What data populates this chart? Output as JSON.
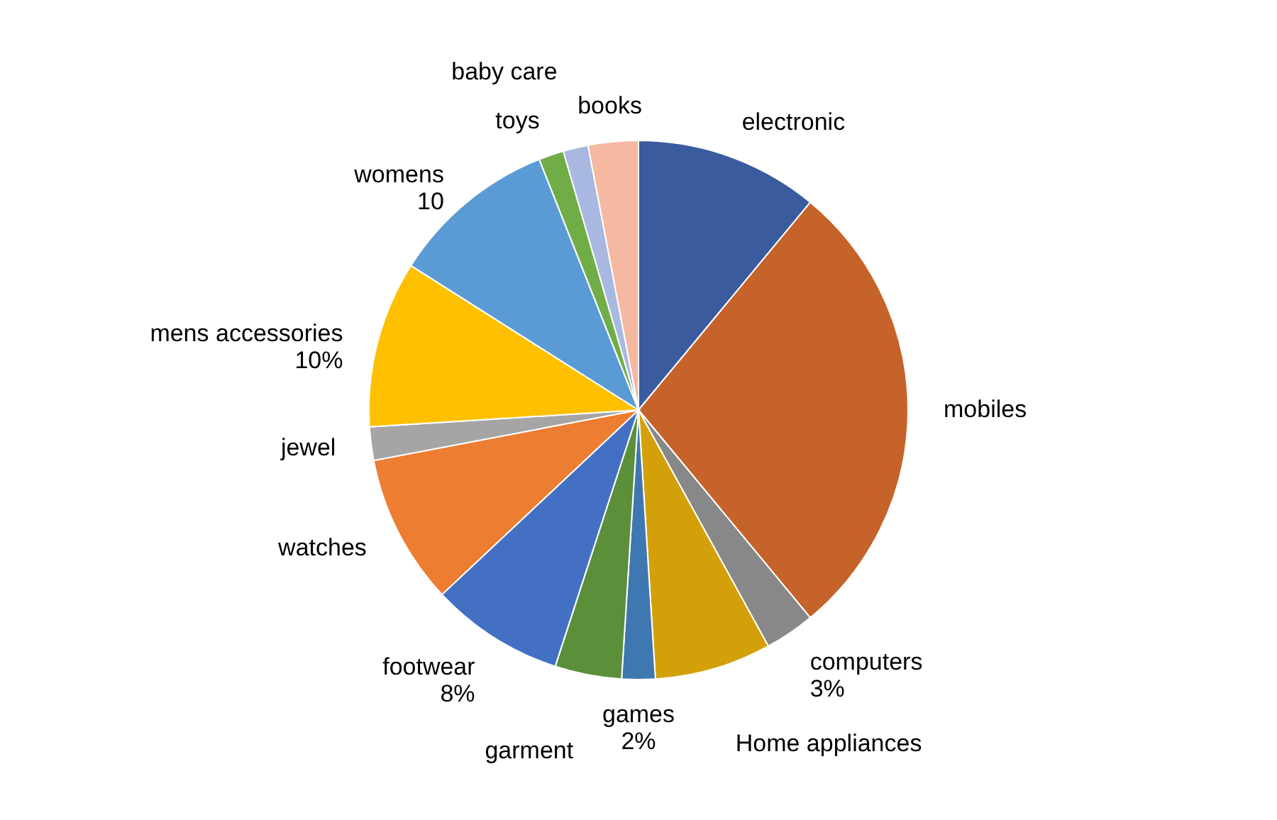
{
  "chart_data": {
    "type": "pie",
    "categories": [
      "electronic",
      "mobiles",
      "computers",
      "Home appliances",
      "games",
      "garment",
      "footwear",
      "watches",
      "jewel",
      "mens accessories",
      "womens",
      "toys",
      "baby care",
      "books"
    ],
    "values": [
      11,
      28,
      3,
      7,
      2,
      4,
      8,
      9,
      2,
      10,
      10,
      1.5,
      1.5,
      3
    ],
    "value_labels": [
      null,
      null,
      "3%",
      null,
      "2%",
      null,
      "8%",
      null,
      null,
      "10%",
      "10",
      null,
      null,
      null
    ],
    "colors": [
      "#3a5c9f",
      "#c5632a",
      "#888888",
      "#d4a00a",
      "#3f78b0",
      "#5b8f3a",
      "#4470c4",
      "#ed7d31",
      "#a5a5a5",
      "#ffc000",
      "#5b9bd5",
      "#70ad47",
      "#a9b8e0",
      "#f4b9a0"
    ]
  }
}
